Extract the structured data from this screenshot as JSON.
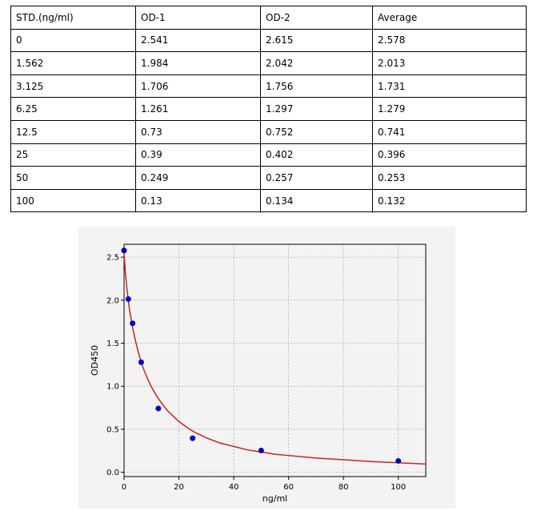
{
  "table": {
    "headers": [
      "STD.(ng/ml)",
      "OD-1",
      "OD-2",
      "Average"
    ],
    "rows": [
      [
        "0",
        "2.541",
        "2.615",
        "2.578"
      ],
      [
        "1.562",
        "1.984",
        "2.042",
        "2.013"
      ],
      [
        "3.125",
        "1.706",
        "1.756",
        "1.731"
      ],
      [
        "6.25",
        "1.261",
        "1.297",
        "1.279"
      ],
      [
        "12.5",
        "0.73",
        "0.752",
        "0.741"
      ],
      [
        "25",
        "0.39",
        "0.402",
        "0.396"
      ],
      [
        "50",
        "0.249",
        "0.257",
        "0.253"
      ],
      [
        "100",
        "0.13",
        "0.134",
        "0.132"
      ]
    ]
  },
  "chart_data": {
    "type": "scatter",
    "xlabel": "ng/ml",
    "ylabel": "OD450",
    "xlim": [
      0,
      110
    ],
    "ylim": [
      -0.05,
      2.65
    ],
    "xticks": [
      0,
      20,
      40,
      60,
      80,
      100
    ],
    "yticks": [
      "0.0",
      "0.5",
      "1.0",
      "1.5",
      "2.0",
      "2.5"
    ],
    "grid": true,
    "points": {
      "x": [
        0,
        1.562,
        3.125,
        6.25,
        12.5,
        25,
        50,
        100
      ],
      "y": [
        2.578,
        2.013,
        1.731,
        1.279,
        0.741,
        0.396,
        0.253,
        0.132
      ],
      "color": "#0000cc"
    },
    "fit_curve": {
      "color": "#cc2222",
      "x": [
        0,
        0.5,
        1,
        1.5,
        2,
        3,
        4,
        5,
        6,
        7,
        8,
        10,
        12,
        14,
        16,
        18,
        20,
        23,
        26,
        30,
        35,
        40,
        45,
        50,
        55,
        60,
        70,
        80,
        90,
        100,
        110
      ],
      "y": [
        2.55,
        2.32,
        2.15,
        2.01,
        1.89,
        1.7,
        1.55,
        1.42,
        1.31,
        1.21,
        1.13,
        0.99,
        0.88,
        0.79,
        0.71,
        0.65,
        0.59,
        0.52,
        0.46,
        0.4,
        0.34,
        0.3,
        0.26,
        0.235,
        0.21,
        0.195,
        0.165,
        0.145,
        0.125,
        0.11,
        0.095
      ]
    }
  }
}
